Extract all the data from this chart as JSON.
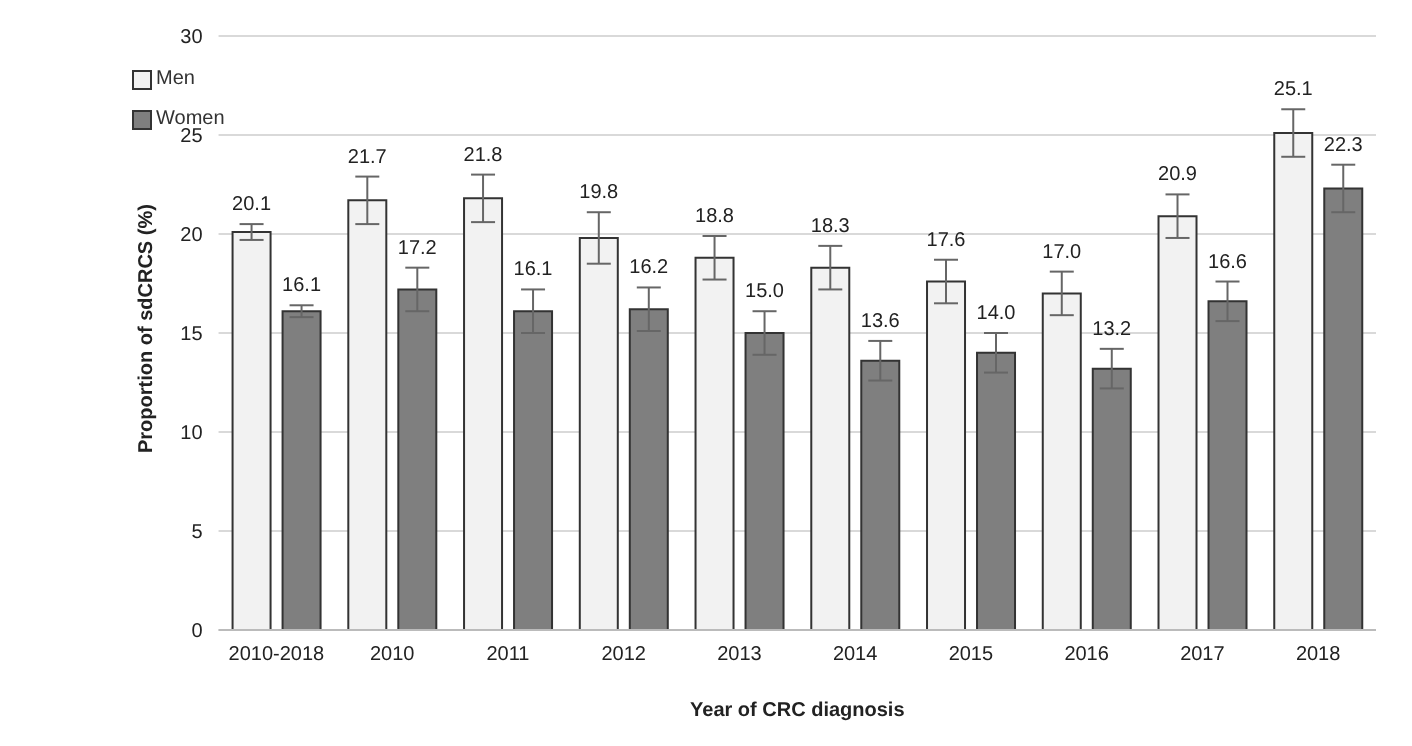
{
  "chart_data": {
    "type": "bar",
    "xlabel": "Year of CRC diagnosis",
    "ylabel": "Proportion of sdCRCS (%)",
    "categories": [
      "2010-2018",
      "2010",
      "2011",
      "2012",
      "2013",
      "2014",
      "2015",
      "2016",
      "2017",
      "2018"
    ],
    "series": [
      {
        "name": "Men",
        "color": "#f2f2f2",
        "values": [
          20.1,
          21.7,
          21.8,
          19.8,
          18.8,
          18.3,
          17.6,
          17.0,
          20.9,
          25.1
        ],
        "errors": [
          0.4,
          1.2,
          1.2,
          1.3,
          1.1,
          1.1,
          1.1,
          1.1,
          1.1,
          1.2
        ],
        "value_labels": [
          "20.1",
          "21.7",
          "21.8",
          "19.8",
          "18.8",
          "18.3",
          "17.6",
          "17.0",
          "20.9",
          "25.1"
        ]
      },
      {
        "name": "Women",
        "color": "#7f7f7f",
        "values": [
          16.1,
          17.2,
          16.1,
          16.2,
          15.0,
          13.6,
          14.0,
          13.2,
          16.6,
          22.3
        ],
        "errors": [
          0.3,
          1.1,
          1.1,
          1.1,
          1.1,
          1.0,
          1.0,
          1.0,
          1.0,
          1.2
        ],
        "value_labels": [
          "16.1",
          "17.2",
          "16.1",
          "16.2",
          "15.0",
          "13.6",
          "14.0",
          "13.2",
          "16.6",
          "22.3"
        ]
      }
    ],
    "ylim": [
      0,
      30
    ],
    "yticks": [
      0,
      5,
      10,
      15,
      20,
      25,
      30
    ],
    "grid": "y",
    "legend": "top left"
  }
}
